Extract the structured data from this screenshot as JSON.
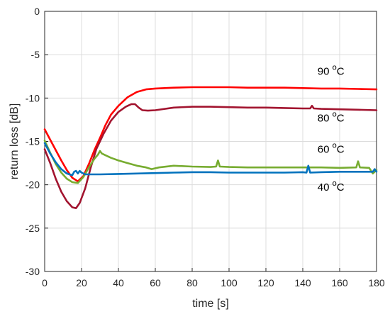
{
  "chart_data": {
    "type": "line",
    "xlabel": "time [s]",
    "ylabel": "return loss [dB]",
    "xlim": [
      0,
      180
    ],
    "ylim": [
      -30,
      0
    ],
    "x_ticks": [
      0,
      20,
      40,
      60,
      80,
      100,
      120,
      140,
      160,
      180
    ],
    "y_ticks": [
      0,
      -5,
      -10,
      -15,
      -20,
      -25,
      -30
    ],
    "grid": true,
    "legend": "none",
    "series": [
      {
        "key": "s90",
        "label_value": "90",
        "label_unit": "C",
        "label_sup": "o",
        "color": "#ff0000",
        "label_at": [
          148,
          -7.3
        ],
        "x": [
          0,
          3,
          6,
          9,
          12,
          15,
          18,
          21,
          24,
          27,
          30,
          33,
          36,
          40,
          45,
          50,
          55,
          60,
          70,
          80,
          90,
          100,
          110,
          120,
          130,
          140,
          150,
          160,
          170,
          180
        ],
        "y": [
          -13.6,
          -14.8,
          -16.0,
          -17.2,
          -18.3,
          -19.2,
          -19.6,
          -19.0,
          -17.6,
          -16.0,
          -14.6,
          -13.1,
          -11.9,
          -10.9,
          -9.9,
          -9.3,
          -9.0,
          -8.9,
          -8.8,
          -8.75,
          -8.75,
          -8.75,
          -8.8,
          -8.8,
          -8.8,
          -8.85,
          -8.9,
          -8.9,
          -8.95,
          -9.0
        ]
      },
      {
        "key": "s80",
        "label_value": "80",
        "label_unit": "C",
        "label_sup": "o",
        "color": "#a2142f",
        "label_at": [
          148,
          -12.7
        ],
        "x": [
          0,
          3,
          6,
          9,
          12,
          15,
          17,
          19,
          22,
          25,
          28,
          32,
          36,
          40,
          44,
          47,
          49,
          51,
          53,
          56,
          60,
          70,
          80,
          90,
          100,
          110,
          120,
          130,
          140,
          144,
          145,
          146,
          150,
          160,
          170,
          180
        ],
        "y": [
          -15.9,
          -17.5,
          -19.3,
          -20.8,
          -21.9,
          -22.6,
          -22.7,
          -22.1,
          -20.4,
          -18.0,
          -15.9,
          -14.1,
          -12.6,
          -11.6,
          -11.0,
          -10.7,
          -10.7,
          -11.1,
          -11.4,
          -11.45,
          -11.4,
          -11.1,
          -11.0,
          -11.0,
          -11.05,
          -11.1,
          -11.1,
          -11.15,
          -11.2,
          -11.2,
          -10.9,
          -11.2,
          -11.25,
          -11.3,
          -11.35,
          -11.4
        ]
      },
      {
        "key": "s60",
        "label_value": "60",
        "label_unit": "C",
        "label_sup": "o",
        "color": "#77ac30",
        "label_at": [
          148,
          -16.3
        ],
        "x": [
          0,
          3,
          6,
          9,
          12,
          15,
          18,
          21,
          24,
          27,
          29,
          30,
          31,
          33,
          36,
          40,
          45,
          50,
          55,
          58,
          62,
          70,
          80,
          90,
          93,
          94,
          95,
          100,
          110,
          120,
          130,
          140,
          150,
          160,
          169,
          170,
          171,
          176,
          178,
          180
        ],
        "y": [
          -14.9,
          -16.3,
          -17.6,
          -18.6,
          -19.3,
          -19.7,
          -19.8,
          -19.1,
          -18.0,
          -17.0,
          -16.5,
          -16.1,
          -16.4,
          -16.6,
          -16.9,
          -17.2,
          -17.5,
          -17.8,
          -18.0,
          -18.2,
          -18.0,
          -17.8,
          -17.9,
          -17.95,
          -17.9,
          -17.2,
          -17.9,
          -17.95,
          -18.0,
          -18.0,
          -18.0,
          -18.0,
          -18.0,
          -18.05,
          -18.0,
          -17.3,
          -18.0,
          -18.05,
          -18.7,
          -18.3
        ]
      },
      {
        "key": "s40",
        "label_value": "40",
        "label_unit": "C",
        "label_sup": "o",
        "color": "#0072bd",
        "label_at": [
          148,
          -20.7
        ],
        "x": [
          0,
          3,
          6,
          9,
          12,
          15,
          16,
          17,
          18,
          19,
          20,
          22,
          25,
          30,
          40,
          50,
          60,
          70,
          80,
          90,
          100,
          110,
          120,
          130,
          140,
          142,
          143,
          144,
          150,
          160,
          170,
          178,
          179,
          180
        ],
        "y": [
          -15.2,
          -16.4,
          -17.4,
          -18.2,
          -18.7,
          -18.9,
          -18.5,
          -18.4,
          -18.7,
          -18.4,
          -18.6,
          -18.8,
          -18.8,
          -18.8,
          -18.75,
          -18.7,
          -18.65,
          -18.6,
          -18.55,
          -18.55,
          -18.6,
          -18.6,
          -18.6,
          -18.6,
          -18.55,
          -18.6,
          -17.8,
          -18.6,
          -18.55,
          -18.5,
          -18.5,
          -18.5,
          -18.2,
          -18.5
        ]
      }
    ]
  }
}
